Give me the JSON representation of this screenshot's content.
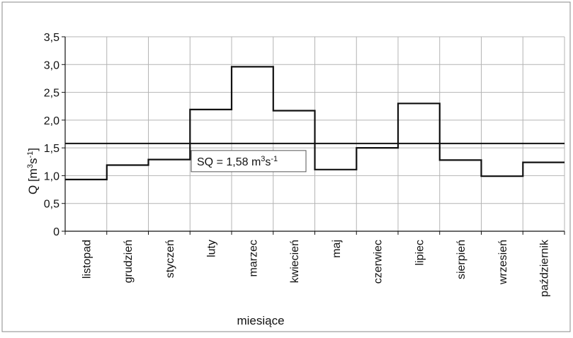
{
  "chart_data": {
    "type": "step-line",
    "categories": [
      "listopad",
      "grudzień",
      "styczeń",
      "luty",
      "marzec",
      "kwiecień",
      "maj",
      "czerwiec",
      "lipiec",
      "sierpień",
      "wrzesień",
      "październik"
    ],
    "values": [
      0.93,
      1.19,
      1.29,
      2.19,
      2.96,
      2.17,
      1.11,
      1.5,
      2.3,
      1.28,
      0.99,
      1.24
    ],
    "ylim": [
      0,
      3.5
    ],
    "yticks": [
      "0",
      "0,5",
      "1,0",
      "1,5",
      "2,0",
      "2,5",
      "3,0",
      "3,5"
    ],
    "ylabel": {
      "main": "Q [m",
      "sup1": "3",
      "mid": "s",
      "sup2": "-1",
      "end": "]"
    },
    "xlabel": "miesiące",
    "reference_line": {
      "value": 1.58,
      "label_main": "SQ = 1,58 m",
      "label_sup1": "3",
      "label_mid": "s",
      "label_sup2": "-1"
    },
    "grid": true,
    "line_color": "#111111",
    "grid_color": "#b4b4b4"
  }
}
